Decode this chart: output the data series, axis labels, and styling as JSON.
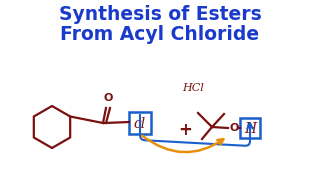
{
  "title_line1": "Synthesis of Esters",
  "title_line2": "From Acyl Chloride",
  "title_color": "#1a3acc",
  "title_fontsize": 13.5,
  "bg_color": "#ffffff",
  "dark_red": "#7B1010",
  "blue": "#1a5fcc",
  "orange": "#E8900A",
  "hcl_label": "HCl",
  "cl_label": "cl",
  "h_label": "H",
  "plus_label": "+"
}
